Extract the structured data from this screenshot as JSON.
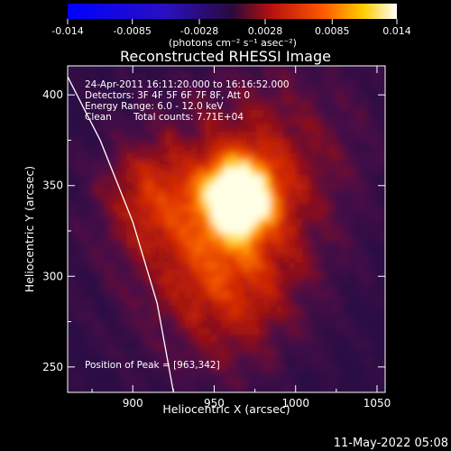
{
  "chart_data": {
    "type": "heatmap",
    "title": "Reconstructed RHESSI Image",
    "xlabel": "Heliocentric X (arcsec)",
    "ylabel": "Heliocentric Y (arcsec)",
    "xlim": [
      860,
      1055
    ],
    "ylim": [
      236,
      416
    ],
    "x_ticks": [
      "900",
      "950",
      "1000",
      "1050"
    ],
    "x_tick_values": [
      900,
      950,
      1000,
      1050
    ],
    "y_ticks": [
      "250",
      "300",
      "350",
      "400"
    ],
    "y_tick_values": [
      250,
      300,
      350,
      400
    ],
    "colorbar": {
      "range": [
        -0.014,
        0.014
      ],
      "ticks": [
        "-0.014",
        "-0.0085",
        "-0.0028",
        "0.0028",
        "0.0085",
        "0.014"
      ],
      "tick_values": [
        -0.014,
        -0.0085,
        -0.0028,
        0.0028,
        0.0085,
        0.014
      ],
      "label": "(photons cm⁻² s⁻¹ asec⁻²)",
      "colormap": "blue-purple-red-yellow-white"
    },
    "annotations": {
      "time_range": "24-Apr-2011 16:11:20.000 to 16:16:52.000",
      "detectors": "Detectors: 3F 4F 5F 6F 7F 8F, Att 0",
      "energy": "Energy Range: 6.0 - 12.0 keV",
      "method": "Clean",
      "counts": "Total counts: 7.71E+04",
      "peak": "Position of Peak = [963,342]"
    },
    "peak": [
      963,
      342
    ],
    "limb_curve": [
      [
        860,
        410
      ],
      [
        880,
        375
      ],
      [
        900,
        330
      ],
      [
        915,
        285
      ],
      [
        925,
        236
      ]
    ]
  },
  "footer": {
    "timestamp": "11-May-2022 05:08"
  },
  "colors": {
    "background": "#000000",
    "text": "#ffffff",
    "limb": "#ffffff"
  }
}
